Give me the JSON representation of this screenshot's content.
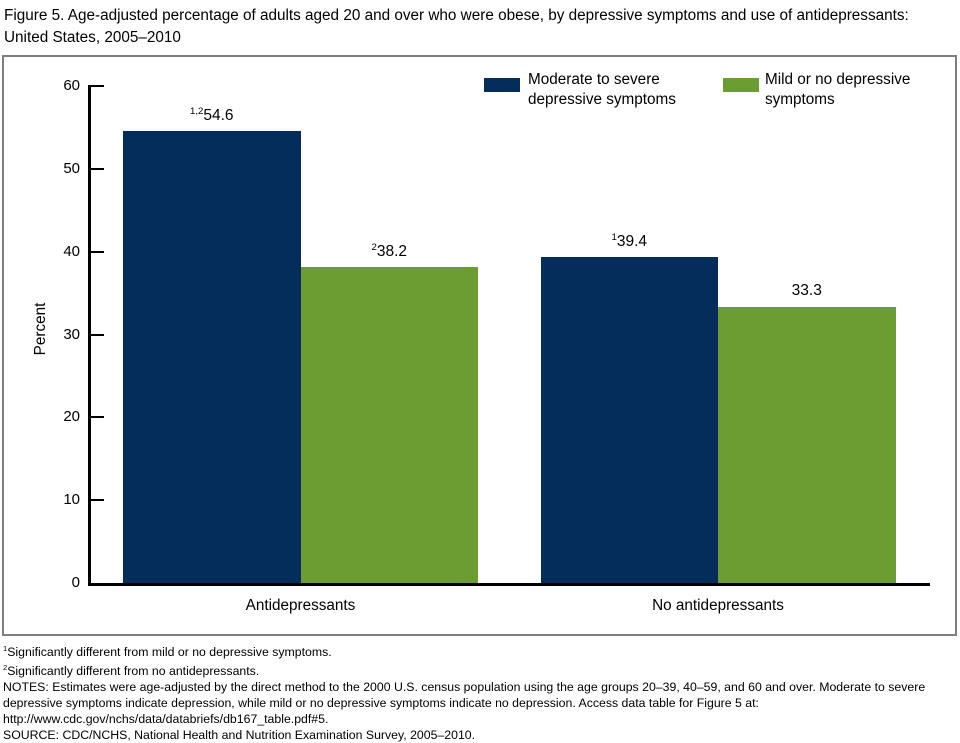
{
  "title": "Figure 5. Age-adjusted percentage of adults aged 20 and over who were obese, by depressive symptoms and use of antidepressants: United States, 2005–2010",
  "chart_data": {
    "type": "bar",
    "title": "Age-adjusted percentage of adults aged 20 and over who were obese, by depressive symptoms and use of antidepressants",
    "ylabel": "Percent",
    "xlabel": "",
    "ylim": [
      0,
      60
    ],
    "yticks": [
      0,
      10,
      20,
      30,
      40,
      50,
      60
    ],
    "grid": false,
    "legend_position": "top-right",
    "categories": [
      "Antidepressants",
      "No antidepressants"
    ],
    "series": [
      {
        "name": "Moderate to severe depressive symptoms",
        "color": "#042d5c",
        "values": [
          54.6,
          39.4
        ],
        "superscripts": [
          "1,2",
          "1"
        ]
      },
      {
        "name": "Mild or no depressive symptoms",
        "color": "#6b9d32",
        "values": [
          38.2,
          33.3
        ],
        "superscripts": [
          "2",
          ""
        ]
      }
    ]
  },
  "footnotes": [
    {
      "sup": "1",
      "text": "Significantly different from mild or no depressive symptoms."
    },
    {
      "sup": "2",
      "text": "Significantly different from no antidepressants."
    },
    {
      "sup": "",
      "text": "NOTES: Estimates were age-adjusted by the direct method to the 2000 U.S. census population using the age groups 20–39, 40–59, and 60 and over. Moderate to severe depressive symptoms indicate depression, while mild or no depressive symptoms indicate no depression. Access data table for Figure 5 at: http://www.cdc.gov/nchs/data/databriefs/db167_table.pdf#5."
    },
    {
      "sup": "",
      "text": "SOURCE: CDC/NCHS, National Health and Nutrition Examination Survey, 2005–2010."
    }
  ]
}
